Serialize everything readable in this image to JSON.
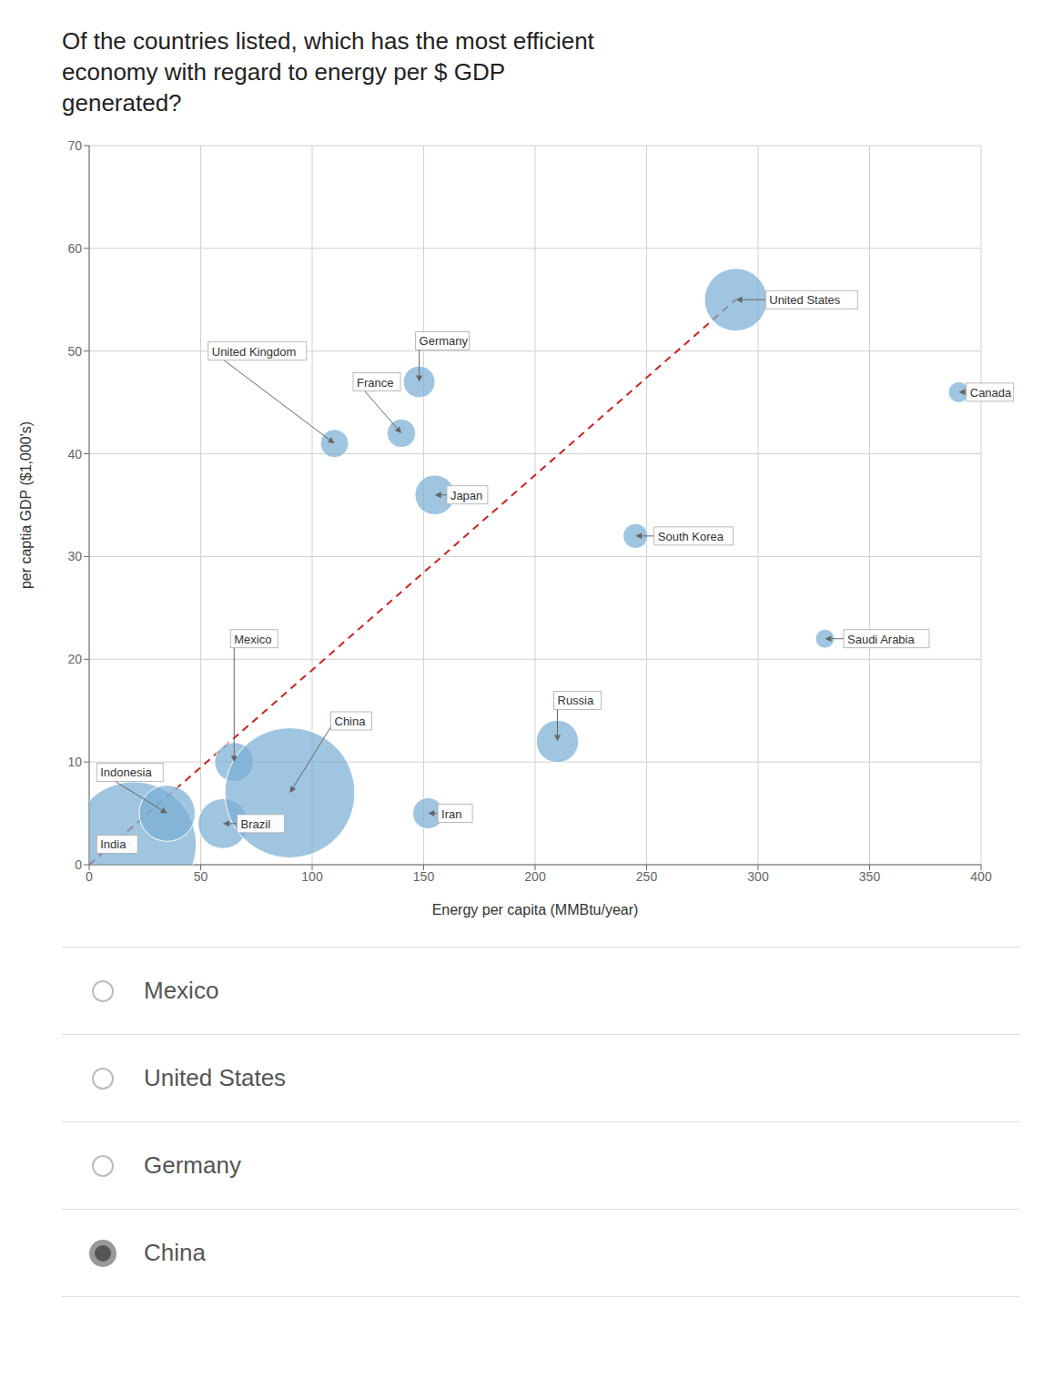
{
  "chart_data": {
    "type": "scatter",
    "title": [
      "Of the countries listed, which has the most efficient",
      "economy with regard to energy per $ GDP",
      "generated?"
    ],
    "xlabel": "Energy per capita (MMBtu/year)",
    "ylabel": "per captia GDP ($1,000's)",
    "xlim": [
      0,
      400
    ],
    "ylim": [
      0,
      70
    ],
    "xticks": [
      0,
      50,
      100,
      150,
      200,
      250,
      300,
      350,
      400
    ],
    "yticks": [
      0,
      10,
      20,
      30,
      40,
      50,
      60,
      70
    ],
    "grid": true,
    "series": [
      {
        "type": "scatter",
        "color": "#7aafd4",
        "x": [
          20,
          35,
          65,
          60,
          90,
          152,
          210,
          245,
          330,
          155,
          140,
          148,
          110,
          290,
          390
        ],
        "values": [
          2,
          5,
          10,
          4,
          7,
          5,
          12,
          32,
          22,
          36,
          42,
          47,
          41,
          55,
          46
        ],
        "sizes": [
          1252,
          253,
          122,
          200,
          1357,
          77,
          144,
          50,
          29,
          127,
          66,
          81,
          64,
          316,
          35
        ],
        "annotations": [
          "India",
          "Indonesia",
          "Mexico",
          "Brazil",
          "China",
          "Iran",
          "Russia",
          "South Korea",
          "Saudi Arabia",
          "Japan",
          "France",
          "Germany",
          "United Kingdom",
          "United States",
          "Canada"
        ]
      },
      {
        "type": "line",
        "color": "#cc2222",
        "line_style": "dashed",
        "x": [
          0,
          290
        ],
        "values": [
          0,
          55
        ]
      }
    ],
    "choices": [
      {
        "label": "Mexico",
        "selected": false
      },
      {
        "label": "United States",
        "selected": false
      },
      {
        "label": "Germany",
        "selected": false
      },
      {
        "label": "China",
        "selected": true
      }
    ]
  }
}
